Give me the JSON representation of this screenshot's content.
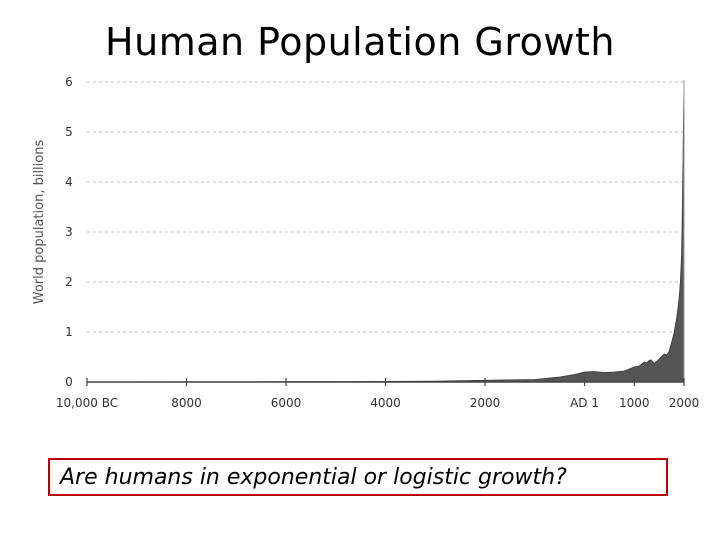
{
  "slide": {
    "title": "Human Population Growth",
    "question": "Are humans in exponential or logistic growth?"
  },
  "chart_data": {
    "type": "area",
    "ylabel": "World population, billions",
    "xlabel": "",
    "y_ticks": [
      0,
      1,
      2,
      3,
      4,
      5,
      6
    ],
    "ylim": [
      0,
      6
    ],
    "x_ticks": [
      {
        "value": -10000,
        "label": "10,000 BC"
      },
      {
        "value": -8000,
        "label": "8000"
      },
      {
        "value": -6000,
        "label": "6000"
      },
      {
        "value": -4000,
        "label": "4000"
      },
      {
        "value": -2000,
        "label": "2000"
      },
      {
        "value": 1,
        "label": "AD 1"
      },
      {
        "value": 1000,
        "label": "1000"
      },
      {
        "value": 2000,
        "label": "2000"
      }
    ],
    "xlim": [
      -10000,
      2000
    ],
    "grid": true,
    "fill_color": "#555555",
    "series": [
      {
        "x": [
          -10000,
          -8000,
          -6000,
          -5000,
          -4000,
          -3000,
          -2000,
          -1000,
          -500,
          -200,
          1,
          200,
          400,
          600,
          800,
          1000,
          1100,
          1200,
          1250,
          1300,
          1340,
          1400,
          1500,
          1600,
          1650,
          1700,
          1750,
          1800,
          1850,
          1900,
          1927,
          1950,
          1960,
          1970,
          1980,
          1990,
          2000
        ],
        "y": [
          0.002,
          0.004,
          0.006,
          0.008,
          0.012,
          0.018,
          0.035,
          0.05,
          0.1,
          0.15,
          0.2,
          0.21,
          0.19,
          0.2,
          0.22,
          0.3,
          0.32,
          0.4,
          0.38,
          0.43,
          0.44,
          0.37,
          0.46,
          0.56,
          0.54,
          0.61,
          0.79,
          0.98,
          1.26,
          1.65,
          2.0,
          2.52,
          3.0,
          3.7,
          4.4,
          5.3,
          6.0
        ]
      }
    ]
  }
}
